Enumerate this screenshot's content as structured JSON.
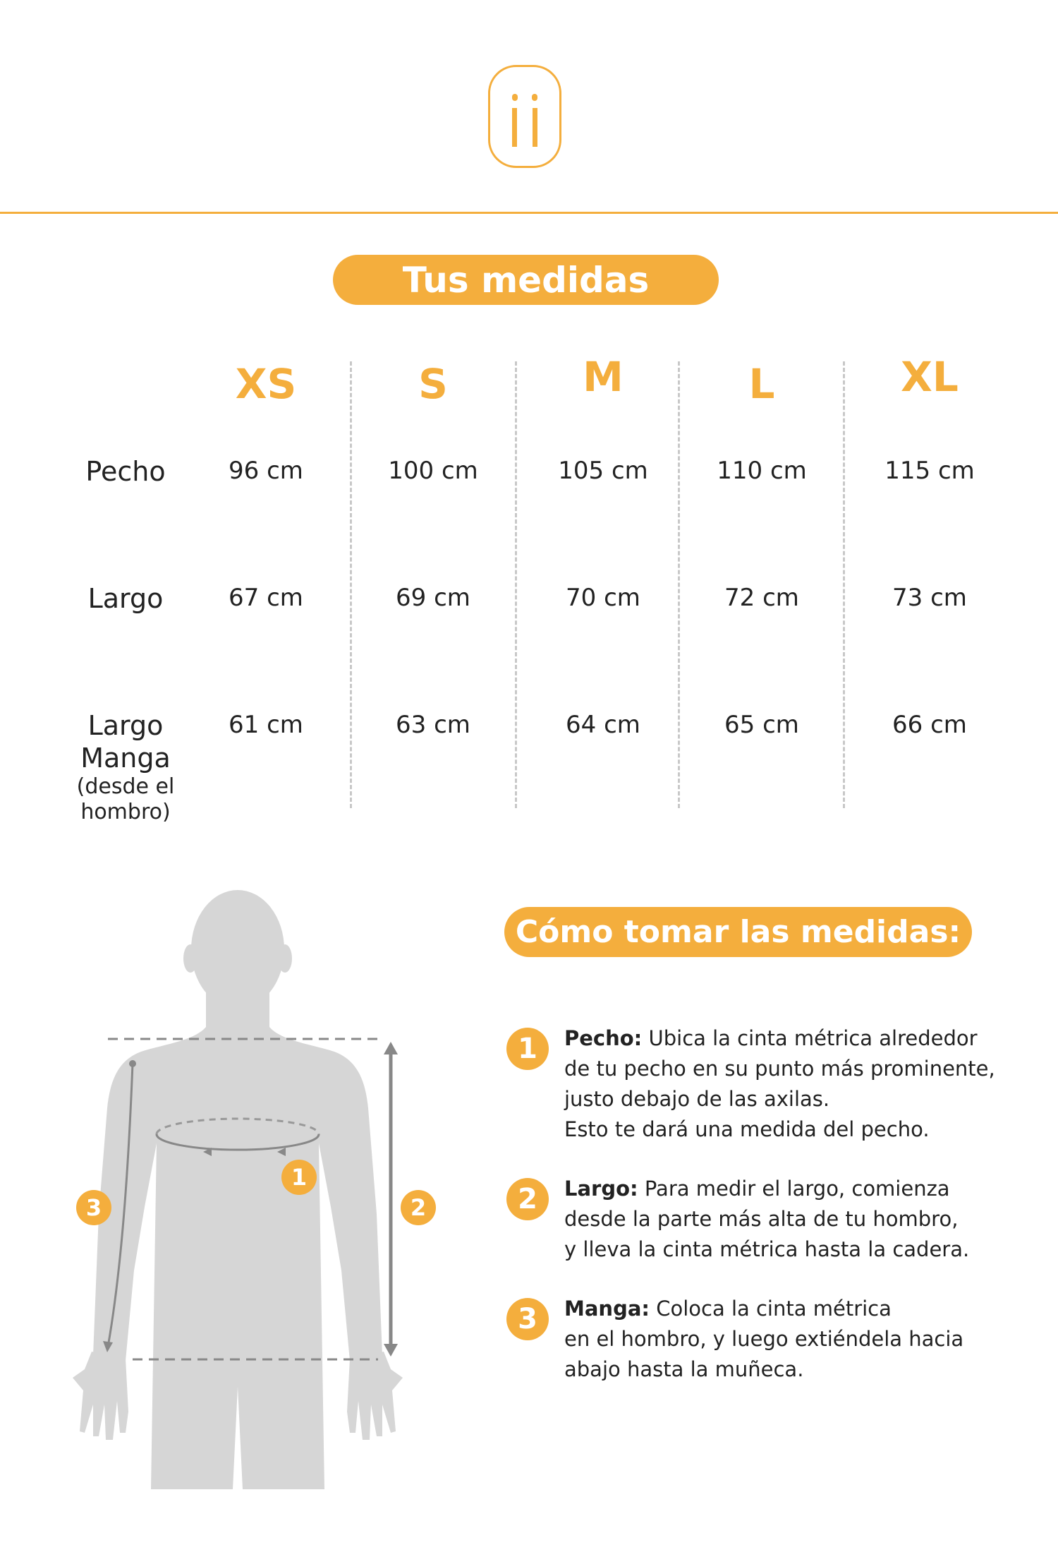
{
  "colors": {
    "accent": "#f4ae3d",
    "figure": "#d6d6d6",
    "lines": "#888888"
  },
  "logo": {
    "icon": "ii-logo-icon"
  },
  "title": "Tus medidas",
  "table": {
    "sizes": [
      "XS",
      "S",
      "M",
      "L",
      "XL"
    ],
    "rows": [
      {
        "label": "Pecho",
        "sub": "",
        "values": [
          "96 cm",
          "100 cm",
          "105 cm",
          "110 cm",
          "115 cm"
        ]
      },
      {
        "label": "Largo",
        "sub": "",
        "values": [
          "67 cm",
          "69 cm",
          "70 cm",
          "72 cm",
          "73 cm"
        ]
      },
      {
        "label": "Largo Manga",
        "sub": "(desde el hombro)",
        "values": [
          "61 cm",
          "63 cm",
          "64 cm",
          "65 cm",
          "66 cm"
        ]
      }
    ]
  },
  "figure": {
    "badges": [
      "1",
      "2",
      "3"
    ]
  },
  "howto": {
    "title": "Cómo tomar las medidas:",
    "steps": [
      {
        "num": "1",
        "label": "Pecho:",
        "lines": [
          " Ubica la cinta métrica alrededor",
          "de tu pecho en su punto más prominente,",
          "justo debajo de las axilas.",
          "Esto te dará una medida del pecho."
        ]
      },
      {
        "num": "2",
        "label": "Largo:",
        "lines": [
          " Para medir el largo, comienza",
          "desde la parte más alta de tu hombro,",
          "y lleva la cinta métrica hasta la cadera."
        ]
      },
      {
        "num": "3",
        "label": "Manga:",
        "lines": [
          " Coloca la cinta métrica",
          "en el hombro, y luego extiéndela hacia",
          "abajo hasta la muñeca."
        ]
      }
    ]
  }
}
